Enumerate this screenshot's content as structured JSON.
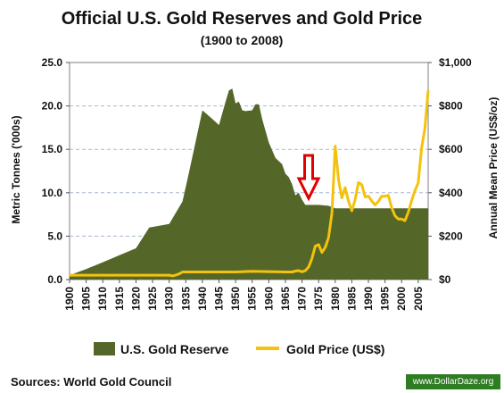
{
  "chart_data": {
    "type": "area",
    "title": "Official U.S. Gold Reserves and Gold Price",
    "subtitle": "(1900 to 2008)",
    "ylabel_left": "Metric Tonnes ('000s)",
    "ylabel_right": "Annual Mean Price (US$/oz)",
    "ylim_left": [
      0,
      25
    ],
    "ylim_right": [
      0,
      1000
    ],
    "yticks_left": [
      "0.0",
      "5.0",
      "10.0",
      "15.0",
      "20.0",
      "25.0"
    ],
    "yticks_right": [
      "$0",
      "$200",
      "$400",
      "$600",
      "$800",
      "$1,000"
    ],
    "xlim": [
      1900,
      2008
    ],
    "xticks": [
      "1900",
      "1905",
      "1910",
      "1915",
      "1920",
      "1925",
      "1930",
      "1935",
      "1940",
      "1945",
      "1950",
      "1955",
      "1960",
      "1965",
      "1970",
      "1975",
      "1980",
      "1985",
      "1990",
      "1995",
      "2000",
      "2005"
    ],
    "grid": true,
    "legend_position": "bottom",
    "series": [
      {
        "name": "U.S. Gold Reserve",
        "type": "area",
        "axis": "left",
        "color": "#546729",
        "x": [
          1900,
          1905,
          1910,
          1915,
          1920,
          1924,
          1927,
          1930,
          1934,
          1936,
          1940,
          1943,
          1945,
          1947,
          1948,
          1949,
          1950,
          1951,
          1952,
          1953,
          1955,
          1956,
          1957,
          1958,
          1960,
          1962,
          1964,
          1965,
          1966,
          1967,
          1968,
          1969,
          1970,
          1971,
          1972,
          1975,
          1978,
          1980,
          2008
        ],
        "values": [
          0.5,
          1.2,
          2.0,
          2.8,
          3.6,
          6.0,
          6.2,
          6.4,
          9.0,
          12.4,
          19.5,
          18.5,
          17.8,
          20.5,
          21.8,
          22.0,
          20.3,
          20.5,
          19.5,
          19.4,
          19.5,
          20.2,
          20.2,
          18.5,
          15.8,
          14.0,
          13.3,
          12.2,
          11.8,
          11.0,
          9.7,
          10.0,
          9.2,
          8.6,
          8.6,
          8.6,
          8.5,
          8.2,
          8.2
        ]
      },
      {
        "name": "Gold Price (US$)",
        "type": "line",
        "axis": "right",
        "color": "#f4c20d",
        "x": [
          1900,
          1930,
          1931,
          1932,
          1933,
          1934,
          1935,
          1950,
          1955,
          1965,
          1967,
          1968,
          1969,
          1970,
          1971,
          1972,
          1973,
          1974,
          1975,
          1976,
          1977,
          1978,
          1979,
          1980,
          1981,
          1982,
          1983,
          1984,
          1985,
          1986,
          1987,
          1988,
          1989,
          1990,
          1991,
          1992,
          1993,
          1994,
          1995,
          1996,
          1997,
          1998,
          1999,
          2000,
          2001,
          2002,
          2003,
          2004,
          2005,
          2006,
          2007,
          2008
        ],
        "values": [
          20,
          20,
          17,
          21,
          26,
          35,
          35,
          35,
          38,
          35,
          35,
          39,
          41,
          36,
          41,
          58,
          97,
          154,
          161,
          125,
          148,
          193,
          306,
          615,
          460,
          376,
          424,
          361,
          317,
          368,
          447,
          437,
          381,
          384,
          362,
          344,
          360,
          384,
          384,
          388,
          331,
          294,
          279,
          279,
          271,
          310,
          363,
          409,
          445,
          604,
          696,
          872
        ]
      }
    ],
    "annotations": [
      {
        "type": "arrow",
        "direction": "down",
        "x": 1972,
        "color": "#e00000"
      }
    ],
    "source": "Sources: World Gold Council",
    "watermark": "www.DollarDaze.org"
  }
}
